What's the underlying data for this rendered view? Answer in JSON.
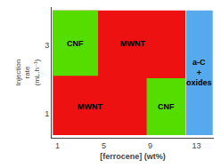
{
  "chart_data": {
    "type": "regions",
    "xlabel": "[ferrocene] (wt%)",
    "ylabel": "Injection\nrate\n(mL.h⁻¹)",
    "xlim": [
      0.5,
      14.5
    ],
    "ylim": [
      0.3,
      4.1
    ],
    "xticks": [
      1,
      5,
      9,
      13
    ],
    "yticks": [
      1,
      3
    ],
    "grid": false,
    "regions": [
      {
        "x": 0.6,
        "y": 0.38,
        "w": 11.45,
        "h": 3.62,
        "color": "#ee1111"
      },
      {
        "x": 12.1,
        "y": 0.38,
        "w": 2.3,
        "h": 3.62,
        "color": "#55aaee"
      },
      {
        "x": 0.6,
        "y": 2.1,
        "w": 3.9,
        "h": 1.9,
        "color": "#55dd00"
      },
      {
        "x": 8.7,
        "y": 0.38,
        "w": 3.35,
        "h": 1.65,
        "color": "#55dd00"
      }
    ],
    "annotations": [
      {
        "text": "MWNT",
        "x": 7.5,
        "y": 3.05
      },
      {
        "text": "MWNT",
        "x": 3.8,
        "y": 1.2
      },
      {
        "text": "CNF",
        "x": 2.5,
        "y": 3.05
      },
      {
        "text": "CNF",
        "x": 10.35,
        "y": 1.2
      },
      {
        "text": "a-C\n+\noxides",
        "x": 13.25,
        "y": 2.19
      }
    ]
  }
}
